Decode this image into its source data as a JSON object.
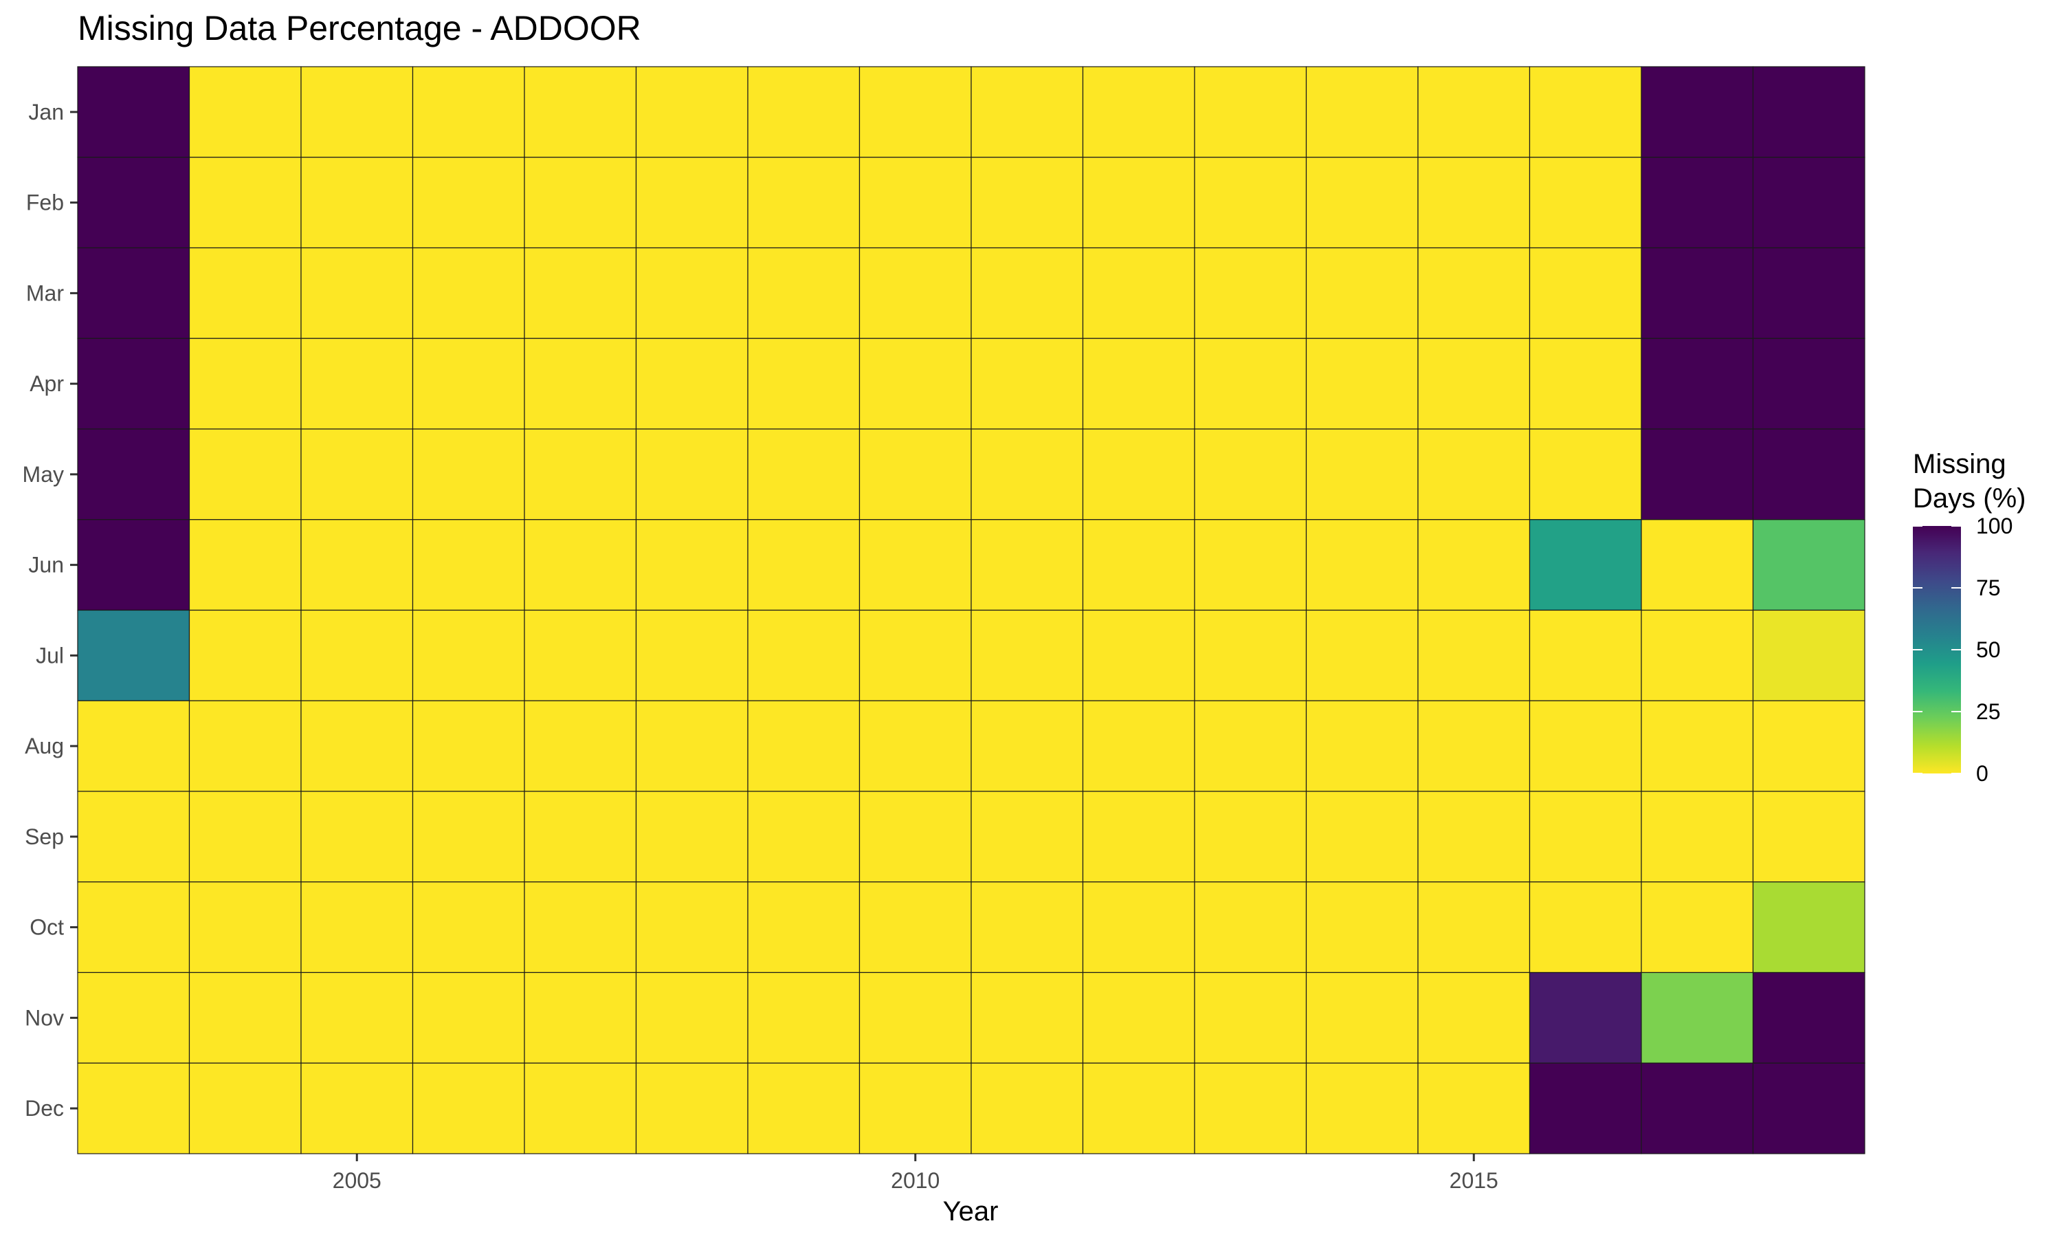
{
  "chart_data": {
    "type": "heatmap",
    "title": "Missing Data Percentage - ADDOOR",
    "xlabel": "Year",
    "ylabel": "",
    "x": [
      2003,
      2004,
      2005,
      2006,
      2007,
      2008,
      2009,
      2010,
      2011,
      2012,
      2013,
      2014,
      2015,
      2016,
      2017,
      2018
    ],
    "x_ticks": [
      2005,
      2010,
      2015
    ],
    "y": [
      "Jan",
      "Feb",
      "Mar",
      "Apr",
      "May",
      "Jun",
      "Jul",
      "Aug",
      "Sep",
      "Oct",
      "Nov",
      "Dec"
    ],
    "values": [
      [
        100,
        0,
        0,
        0,
        0,
        0,
        0,
        0,
        0,
        0,
        0,
        0,
        0,
        0,
        100,
        100
      ],
      [
        100,
        0,
        0,
        0,
        0,
        0,
        0,
        0,
        0,
        0,
        0,
        0,
        0,
        0,
        100,
        100
      ],
      [
        100,
        0,
        0,
        0,
        0,
        0,
        0,
        0,
        0,
        0,
        0,
        0,
        0,
        0,
        100,
        100
      ],
      [
        100,
        0,
        0,
        0,
        0,
        0,
        0,
        0,
        0,
        0,
        0,
        0,
        0,
        0,
        100,
        100
      ],
      [
        100,
        0,
        0,
        0,
        0,
        0,
        0,
        0,
        0,
        0,
        0,
        0,
        0,
        0,
        100,
        100
      ],
      [
        100,
        0,
        0,
        0,
        0,
        0,
        0,
        0,
        0,
        0,
        0,
        0,
        0,
        43,
        0,
        27
      ],
      [
        55,
        0,
        0,
        0,
        0,
        0,
        0,
        0,
        0,
        0,
        0,
        0,
        0,
        0,
        0,
        3
      ],
      [
        0,
        0,
        0,
        0,
        0,
        0,
        0,
        0,
        0,
        0,
        0,
        0,
        0,
        0,
        0,
        0
      ],
      [
        0,
        0,
        0,
        0,
        0,
        0,
        0,
        0,
        0,
        0,
        0,
        0,
        0,
        0,
        0,
        0
      ],
      [
        0,
        0,
        0,
        0,
        0,
        0,
        0,
        0,
        0,
        0,
        0,
        0,
        0,
        0,
        0,
        13
      ],
      [
        0,
        0,
        0,
        0,
        0,
        0,
        0,
        0,
        0,
        0,
        0,
        0,
        0,
        93,
        20,
        100
      ],
      [
        0,
        0,
        0,
        0,
        0,
        0,
        0,
        0,
        0,
        0,
        0,
        0,
        0,
        100,
        100,
        100
      ]
    ],
    "legend": {
      "title_lines": [
        "Missing",
        "Days (%)"
      ],
      "ticks": [
        100,
        75,
        50,
        25,
        0
      ],
      "range": [
        0,
        100
      ],
      "placement": "right",
      "reverse": true
    },
    "colorscale": {
      "name": "viridis",
      "direction": "reversed",
      "stops": [
        "#fde725",
        "#b5de2b",
        "#6ece58",
        "#35b779",
        "#1f9e89",
        "#26828e",
        "#31688e",
        "#3e4989",
        "#482878",
        "#440154"
      ]
    },
    "grid": false,
    "cell_border_color": "#1a1a1a",
    "axis_text_color": "#4d4d4d"
  }
}
